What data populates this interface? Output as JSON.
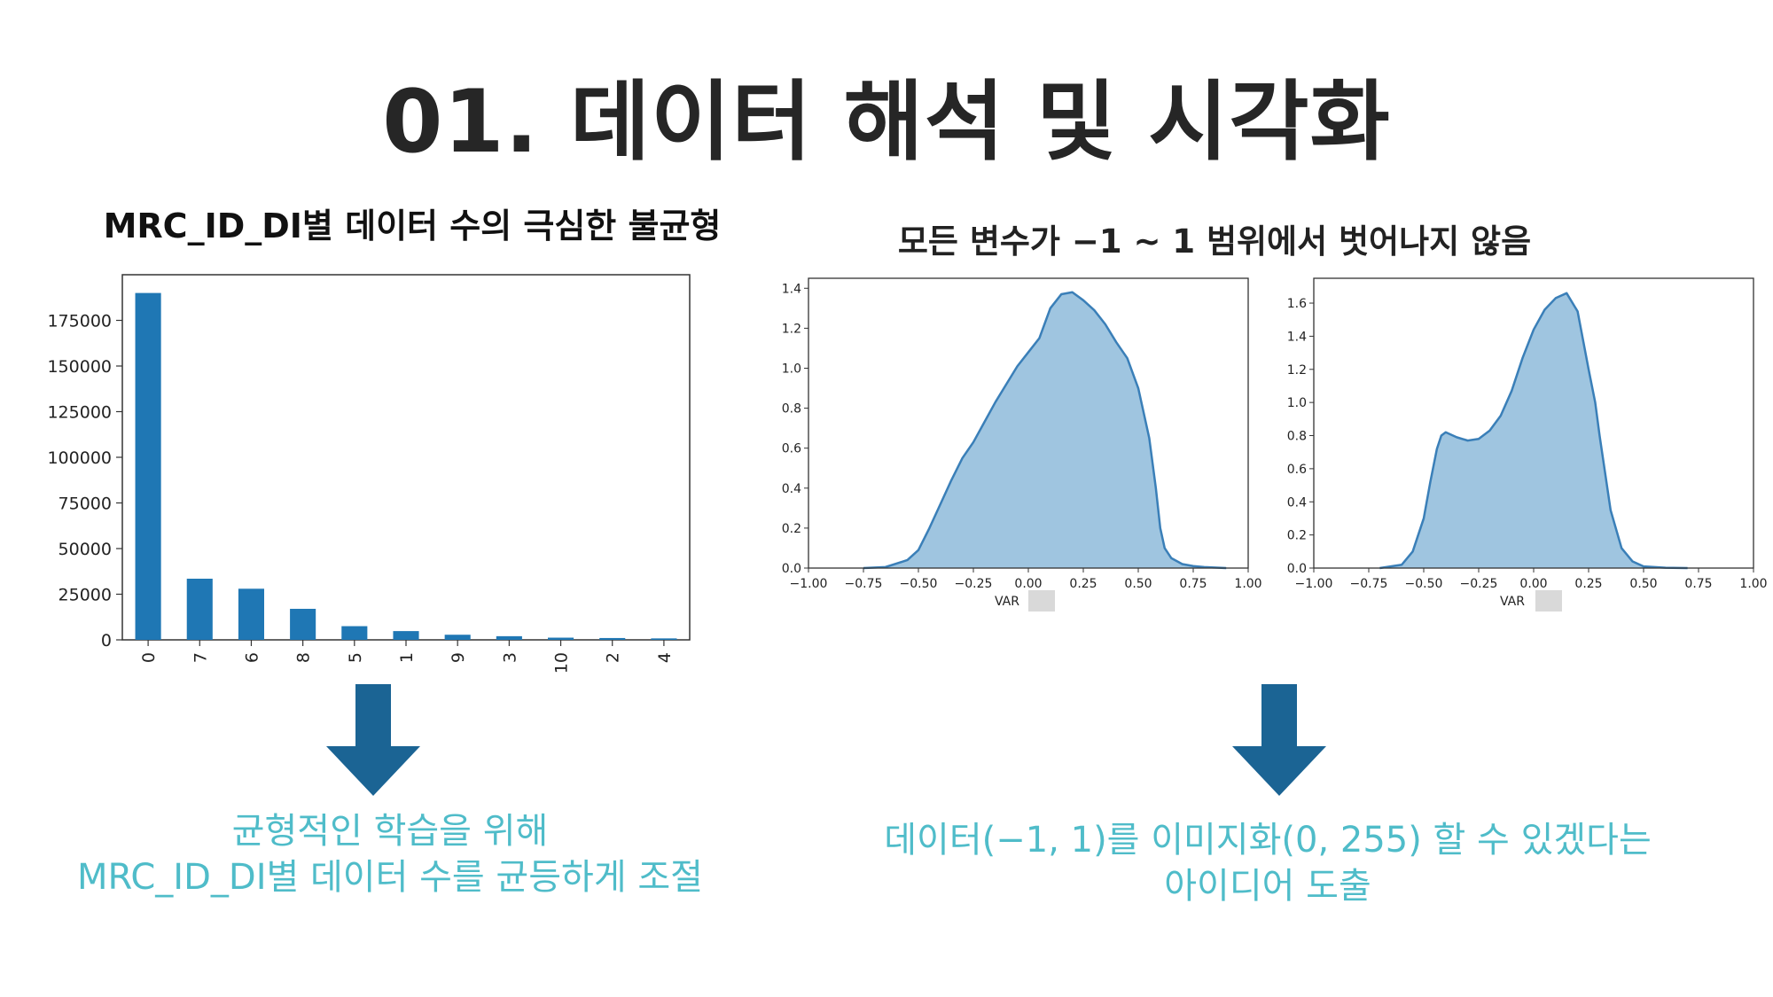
{
  "slide": {
    "title": "01. 데이터 해석 및 시각화",
    "left_subtitle": "MRC_ID_DI별 데이터 수의 극심한 불균형",
    "right_subtitle": "모든 변수가 −1 ~ 1 범위에서 벗어나지 않음",
    "left_caption_line1": "균형적인 학습을 위해",
    "left_caption_line2": "MRC_ID_DI별 데이터 수를 균등하게 조절",
    "right_caption_line1": "데이터(−1, 1)를 이미지화(0, 255) 할 수 있겠다는",
    "right_caption_line2": "아이디어 도출",
    "arrow_color": "#1b6494",
    "caption_color": "#4fbcc9"
  },
  "chart_data": [
    {
      "type": "bar",
      "categories": [
        "0",
        "7",
        "6",
        "8",
        "5",
        "1",
        "9",
        "3",
        "10",
        "2",
        "4"
      ],
      "values": [
        190000,
        33500,
        28000,
        17000,
        7500,
        4800,
        2800,
        2000,
        1200,
        1000,
        800
      ],
      "ylim": [
        0,
        200000
      ],
      "yticks": [
        0,
        25000,
        50000,
        75000,
        100000,
        125000,
        150000,
        175000
      ],
      "ytick_labels": [
        "0",
        "25000",
        "50000",
        "75000",
        "100000",
        "125000",
        "150000",
        "175000"
      ],
      "bar_color": "#1f77b4",
      "title": "",
      "xlabel": "",
      "ylabel": ""
    },
    {
      "type": "area",
      "xlabel": "VAR",
      "xlim": [
        -1.0,
        1.0
      ],
      "ylim": [
        0,
        1.45
      ],
      "xticks": [
        -1.0,
        -0.75,
        -0.5,
        -0.25,
        0.0,
        0.25,
        0.5,
        0.75,
        1.0
      ],
      "xtick_labels": [
        "−1.00",
        "−0.75",
        "−0.50",
        "−0.25",
        "0.00",
        "0.25",
        "0.50",
        "0.75",
        "1.00"
      ],
      "yticks": [
        0.0,
        0.2,
        0.4,
        0.6,
        0.8,
        1.0,
        1.2,
        1.4
      ],
      "ytick_labels": [
        "0.0",
        "0.2",
        "0.4",
        "0.6",
        "0.8",
        "1.0",
        "1.2",
        "1.4"
      ],
      "fill_color": "#9fc5e0",
      "line_color": "#3a7fb8",
      "x": [
        -0.75,
        -0.65,
        -0.55,
        -0.5,
        -0.45,
        -0.4,
        -0.35,
        -0.3,
        -0.25,
        -0.2,
        -0.15,
        -0.1,
        -0.05,
        0.0,
        0.05,
        0.1,
        0.15,
        0.2,
        0.25,
        0.3,
        0.35,
        0.4,
        0.45,
        0.5,
        0.55,
        0.58,
        0.6,
        0.62,
        0.65,
        0.7,
        0.75,
        0.8,
        0.9
      ],
      "y": [
        0.0,
        0.005,
        0.04,
        0.09,
        0.2,
        0.32,
        0.44,
        0.55,
        0.63,
        0.73,
        0.83,
        0.92,
        1.01,
        1.08,
        1.15,
        1.3,
        1.37,
        1.38,
        1.34,
        1.29,
        1.22,
        1.13,
        1.05,
        0.9,
        0.65,
        0.4,
        0.2,
        0.1,
        0.05,
        0.02,
        0.01,
        0.005,
        0.0
      ]
    },
    {
      "type": "area",
      "xlabel": "VAR",
      "xlim": [
        -1.0,
        1.0
      ],
      "ylim": [
        0,
        1.75
      ],
      "xticks": [
        -1.0,
        -0.75,
        -0.5,
        -0.25,
        0.0,
        0.25,
        0.5,
        0.75,
        1.0
      ],
      "xtick_labels": [
        "−1.00",
        "−0.75",
        "−0.50",
        "−0.25",
        "0.00",
        "0.25",
        "0.50",
        "0.75",
        "1.00"
      ],
      "yticks": [
        0.0,
        0.2,
        0.4,
        0.6,
        0.8,
        1.0,
        1.2,
        1.4,
        1.6
      ],
      "ytick_labels": [
        "0.0",
        "0.2",
        "0.4",
        "0.6",
        "0.8",
        "1.0",
        "1.2",
        "1.4",
        "1.6"
      ],
      "fill_color": "#9fc5e0",
      "line_color": "#3a7fb8",
      "x": [
        -0.7,
        -0.6,
        -0.55,
        -0.5,
        -0.47,
        -0.44,
        -0.42,
        -0.4,
        -0.35,
        -0.3,
        -0.25,
        -0.2,
        -0.15,
        -0.1,
        -0.05,
        0.0,
        0.05,
        0.1,
        0.15,
        0.2,
        0.25,
        0.28,
        0.3,
        0.35,
        0.4,
        0.45,
        0.5,
        0.6,
        0.7
      ],
      "y": [
        0.0,
        0.02,
        0.1,
        0.3,
        0.52,
        0.72,
        0.8,
        0.82,
        0.79,
        0.77,
        0.78,
        0.83,
        0.92,
        1.07,
        1.27,
        1.44,
        1.56,
        1.63,
        1.66,
        1.55,
        1.2,
        1.0,
        0.8,
        0.35,
        0.12,
        0.04,
        0.01,
        0.002,
        0.0
      ]
    }
  ]
}
